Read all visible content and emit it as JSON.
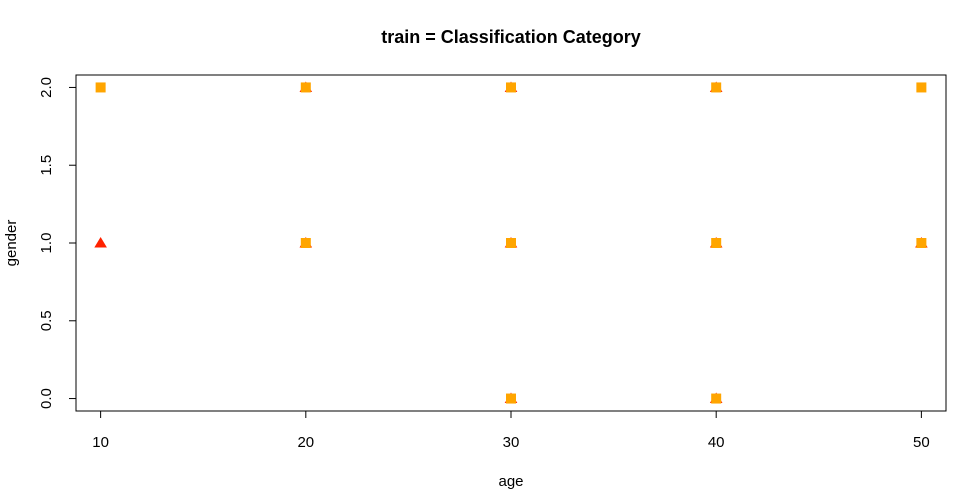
{
  "chart_data": {
    "type": "scatter",
    "title": "train = Classification Category",
    "xlabel": "age",
    "ylabel": "gender",
    "xlim": [
      8.8,
      51.2
    ],
    "ylim": [
      -0.08,
      2.08
    ],
    "x_ticks": [
      "10",
      "20",
      "30",
      "40",
      "50"
    ],
    "y_ticks": [
      "0.0",
      "0.5",
      "1.0",
      "1.5",
      "2.0"
    ],
    "grid": false,
    "legend": "none",
    "series": [
      {
        "marker": "triangle",
        "color": "#ff2200",
        "points": [
          [
            10,
            1
          ],
          [
            20,
            1
          ],
          [
            20,
            2
          ],
          [
            30,
            0
          ],
          [
            30,
            1
          ],
          [
            30,
            2
          ],
          [
            40,
            0
          ],
          [
            40,
            1
          ],
          [
            40,
            2
          ],
          [
            50,
            1
          ]
        ]
      },
      {
        "marker": "square",
        "color": "#ffa500",
        "points": [
          [
            10,
            2
          ],
          [
            20,
            1
          ],
          [
            20,
            2
          ],
          [
            30,
            0
          ],
          [
            30,
            1
          ],
          [
            30,
            2
          ],
          [
            40,
            0
          ],
          [
            40,
            1
          ],
          [
            40,
            2
          ],
          [
            50,
            1
          ],
          [
            50,
            2
          ]
        ]
      }
    ]
  }
}
